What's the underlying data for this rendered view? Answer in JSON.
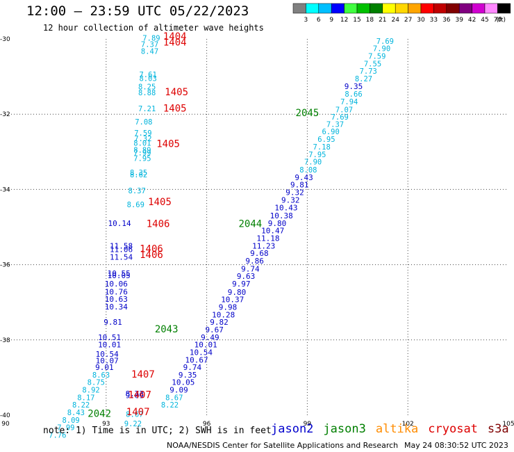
{
  "header": {
    "title": "12:00 — 23:59 UTC 05/22/2023",
    "subtitle": "12 hour collection of altimeter wave heights"
  },
  "footer": {
    "note": "note: 1) Time is in UTC; 2) SWH is in feet",
    "credit": "NOAA/NESDIS Center for Satellite Applications and Research",
    "generated": "May 24 08:30:52 UTC 2023"
  },
  "satellites": [
    {
      "name": "jason2",
      "color": "#0000cc"
    },
    {
      "name": "jason3",
      "color": "#007f00"
    },
    {
      "name": "altika",
      "color": "#ff8c00"
    },
    {
      "name": "cryosat",
      "color": "#dd0000"
    },
    {
      "name": "s3a",
      "color": "#7f0000"
    }
  ],
  "colorbar": {
    "unit": "(ft)",
    "bins": [
      {
        "label": "3",
        "color": "#808080"
      },
      {
        "label": "6",
        "color": "#00ffff"
      },
      {
        "label": "9",
        "color": "#00bfff"
      },
      {
        "label": "12",
        "color": "#0000ff"
      },
      {
        "label": "15",
        "color": "#40ff40"
      },
      {
        "label": "18",
        "color": "#00c000"
      },
      {
        "label": "21",
        "color": "#008000"
      },
      {
        "label": "24",
        "color": "#ffff00"
      },
      {
        "label": "27",
        "color": "#ffd700"
      },
      {
        "label": "30",
        "color": "#ffa500"
      },
      {
        "label": "33",
        "color": "#ff0000"
      },
      {
        "label": "36",
        "color": "#c00000"
      },
      {
        "label": "39",
        "color": "#800000"
      },
      {
        "label": "42",
        "color": "#800080"
      },
      {
        "label": "45",
        "color": "#d000d0"
      },
      {
        "label": "70",
        "color": "#ff88ff"
      },
      {
        "label": "",
        "color": "#000000"
      }
    ]
  },
  "chart_data": {
    "type": "scatter",
    "title": "12:00 — 23:59 UTC 05/22/2023",
    "xlim": [
      90,
      105
    ],
    "ylim": [
      -40,
      -30
    ],
    "x_ticks": [
      90,
      93,
      96,
      99,
      102,
      105
    ],
    "y_ticks": [
      -30,
      -32,
      -34,
      -36,
      -38,
      -40
    ],
    "grid": true,
    "value_colors": {
      "cyan": "#00b4dc",
      "blue": "#0000c8",
      "time": "#dd0000",
      "track": "#007f00"
    },
    "points": [
      {
        "x": 94.35,
        "y": -30.05,
        "v": "7.89",
        "c": "cyan"
      },
      {
        "x": 94.3,
        "y": -30.21,
        "v": "7.37",
        "c": "cyan"
      },
      {
        "x": 94.3,
        "y": -30.4,
        "v": "8.47",
        "c": "cyan"
      },
      {
        "x": 94.25,
        "y": -31.02,
        "v": "7.61",
        "c": "cyan"
      },
      {
        "x": 94.25,
        "y": -31.12,
        "v": "8.03",
        "c": "cyan"
      },
      {
        "x": 94.22,
        "y": -31.34,
        "v": "8.25",
        "c": "cyan"
      },
      {
        "x": 94.22,
        "y": -31.5,
        "v": "8.88",
        "c": "cyan"
      },
      {
        "x": 94.22,
        "y": -31.92,
        "v": "7.21",
        "c": "cyan"
      },
      {
        "x": 94.12,
        "y": -32.27,
        "v": "7.08",
        "c": "cyan"
      },
      {
        "x": 94.1,
        "y": -32.57,
        "v": "7.59",
        "c": "cyan"
      },
      {
        "x": 94.1,
        "y": -32.72,
        "v": "7.32",
        "c": "cyan"
      },
      {
        "x": 94.08,
        "y": -32.84,
        "v": "8.01",
        "c": "cyan"
      },
      {
        "x": 94.08,
        "y": -33.02,
        "v": "8.89",
        "c": "cyan"
      },
      {
        "x": 94.08,
        "y": -33.1,
        "v": "7.99",
        "c": "cyan"
      },
      {
        "x": 94.08,
        "y": -33.24,
        "v": "7.95",
        "c": "cyan"
      },
      {
        "x": 93.97,
        "y": -33.62,
        "v": "8.35",
        "c": "cyan"
      },
      {
        "x": 93.97,
        "y": -33.68,
        "v": "8.62",
        "c": "cyan"
      },
      {
        "x": 93.92,
        "y": -34.1,
        "v": "8.37",
        "c": "cyan"
      },
      {
        "x": 93.88,
        "y": -34.47,
        "v": "8.69",
        "c": "cyan"
      },
      {
        "x": 101.32,
        "y": -30.13,
        "v": "7.69",
        "c": "cyan"
      },
      {
        "x": 101.22,
        "y": -30.32,
        "v": "7.90",
        "c": "cyan"
      },
      {
        "x": 101.08,
        "y": -30.53,
        "v": "7.59",
        "c": "cyan"
      },
      {
        "x": 100.95,
        "y": -30.73,
        "v": "7.55",
        "c": "cyan"
      },
      {
        "x": 100.82,
        "y": -30.92,
        "v": "7.73",
        "c": "cyan"
      },
      {
        "x": 100.68,
        "y": -31.13,
        "v": "8.27",
        "c": "cyan"
      },
      {
        "x": 100.38,
        "y": -31.33,
        "v": "9.35",
        "c": "blue"
      },
      {
        "x": 100.38,
        "y": -31.53,
        "v": "8.66",
        "c": "cyan"
      },
      {
        "x": 100.25,
        "y": -31.74,
        "v": "7.94",
        "c": "cyan"
      },
      {
        "x": 100.1,
        "y": -31.95,
        "v": "7.07",
        "c": "cyan"
      },
      {
        "x": 99.97,
        "y": -32.14,
        "v": "7.69",
        "c": "cyan"
      },
      {
        "x": 99.83,
        "y": -32.34,
        "v": "7.37",
        "c": "cyan"
      },
      {
        "x": 99.7,
        "y": -32.53,
        "v": "6.90",
        "c": "cyan"
      },
      {
        "x": 99.57,
        "y": -32.74,
        "v": "6.95",
        "c": "cyan"
      },
      {
        "x": 99.43,
        "y": -32.94,
        "v": "7.18",
        "c": "cyan"
      },
      {
        "x": 99.3,
        "y": -33.14,
        "v": "7.95",
        "c": "cyan"
      },
      {
        "x": 99.17,
        "y": -33.34,
        "v": "7.90",
        "c": "cyan"
      },
      {
        "x": 99.03,
        "y": -33.55,
        "v": "8.08",
        "c": "cyan"
      },
      {
        "x": 98.9,
        "y": -33.75,
        "v": "9.43",
        "c": "blue"
      },
      {
        "x": 98.77,
        "y": -33.95,
        "v": "9.81",
        "c": "blue"
      },
      {
        "x": 98.63,
        "y": -34.15,
        "v": "9.32",
        "c": "blue"
      },
      {
        "x": 98.5,
        "y": -34.35,
        "v": "9.32",
        "c": "blue"
      },
      {
        "x": 98.37,
        "y": -34.56,
        "v": "10.43",
        "c": "blue"
      },
      {
        "x": 98.23,
        "y": -34.77,
        "v": "10.38",
        "c": "blue"
      },
      {
        "x": 98.1,
        "y": -34.97,
        "v": "9.80",
        "c": "blue"
      },
      {
        "x": 97.97,
        "y": -35.17,
        "v": "10.47",
        "c": "blue"
      },
      {
        "x": 97.83,
        "y": -35.37,
        "v": "11.18",
        "c": "blue"
      },
      {
        "x": 97.7,
        "y": -35.57,
        "v": "11.23",
        "c": "blue"
      },
      {
        "x": 97.57,
        "y": -35.77,
        "v": "9.68",
        "c": "blue"
      },
      {
        "x": 97.43,
        "y": -35.97,
        "v": "9.86",
        "c": "blue"
      },
      {
        "x": 97.3,
        "y": -36.18,
        "v": "9.74",
        "c": "blue"
      },
      {
        "x": 97.17,
        "y": -36.38,
        "v": "9.63",
        "c": "blue"
      },
      {
        "x": 97.03,
        "y": -36.58,
        "v": "9.97",
        "c": "blue"
      },
      {
        "x": 96.9,
        "y": -36.8,
        "v": "9.80",
        "c": "blue"
      },
      {
        "x": 96.77,
        "y": -37.0,
        "v": "10.37",
        "c": "blue"
      },
      {
        "x": 96.63,
        "y": -37.2,
        "v": "9.98",
        "c": "blue"
      },
      {
        "x": 96.5,
        "y": -37.4,
        "v": "10.28",
        "c": "blue"
      },
      {
        "x": 96.37,
        "y": -37.6,
        "v": "9.82",
        "c": "blue"
      },
      {
        "x": 96.23,
        "y": -37.8,
        "v": "9.67",
        "c": "blue"
      },
      {
        "x": 96.1,
        "y": -38.0,
        "v": "9.49",
        "c": "blue"
      },
      {
        "x": 95.97,
        "y": -38.2,
        "v": "10.01",
        "c": "blue"
      },
      {
        "x": 95.83,
        "y": -38.4,
        "v": "10.54",
        "c": "blue"
      },
      {
        "x": 95.7,
        "y": -38.6,
        "v": "10.67",
        "c": "blue"
      },
      {
        "x": 95.57,
        "y": -38.8,
        "v": "9.74",
        "c": "blue"
      },
      {
        "x": 95.43,
        "y": -39.0,
        "v": "9.35",
        "c": "blue"
      },
      {
        "x": 95.3,
        "y": -39.2,
        "v": "10.05",
        "c": "blue"
      },
      {
        "x": 95.17,
        "y": -39.4,
        "v": "9.09",
        "c": "blue"
      },
      {
        "x": 95.03,
        "y": -39.6,
        "v": "8.67",
        "c": "cyan"
      },
      {
        "x": 94.9,
        "y": -39.8,
        "v": "8.22",
        "c": "cyan"
      },
      {
        "x": 93.45,
        "y": -35.57,
        "v": "11.58",
        "c": "blue"
      },
      {
        "x": 93.45,
        "y": -35.67,
        "v": "11.06",
        "c": "blue"
      },
      {
        "x": 93.45,
        "y": -35.87,
        "v": "11.54",
        "c": "blue"
      },
      {
        "x": 93.4,
        "y": -34.97,
        "v": "10.14",
        "c": "blue"
      },
      {
        "x": 93.38,
        "y": -36.3,
        "v": "10.55",
        "c": "blue"
      },
      {
        "x": 93.38,
        "y": -36.36,
        "v": "10.05",
        "c": "blue"
      },
      {
        "x": 93.3,
        "y": -36.58,
        "v": "10.06",
        "c": "blue"
      },
      {
        "x": 93.3,
        "y": -36.79,
        "v": "10.76",
        "c": "blue"
      },
      {
        "x": 93.3,
        "y": -36.99,
        "v": "10.63",
        "c": "blue"
      },
      {
        "x": 93.3,
        "y": -37.19,
        "v": "10.34",
        "c": "blue"
      },
      {
        "x": 93.2,
        "y": -37.6,
        "v": "9.81",
        "c": "blue"
      },
      {
        "x": 93.1,
        "y": -38.0,
        "v": "10.51",
        "c": "blue"
      },
      {
        "x": 93.1,
        "y": -38.2,
        "v": "10.01",
        "c": "blue"
      },
      {
        "x": 93.03,
        "y": -38.45,
        "v": "10.54",
        "c": "blue"
      },
      {
        "x": 93.03,
        "y": -38.62,
        "v": "10.07",
        "c": "blue"
      },
      {
        "x": 92.95,
        "y": -38.8,
        "v": "9.01",
        "c": "blue"
      },
      {
        "x": 92.85,
        "y": -39.0,
        "v": "8.63",
        "c": "cyan"
      },
      {
        "x": 92.7,
        "y": -39.2,
        "v": "8.75",
        "c": "cyan"
      },
      {
        "x": 92.55,
        "y": -39.4,
        "v": "8.92",
        "c": "cyan"
      },
      {
        "x": 92.4,
        "y": -39.6,
        "v": "8.17",
        "c": "cyan"
      },
      {
        "x": 92.25,
        "y": -39.8,
        "v": "8.22",
        "c": "cyan"
      },
      {
        "x": 92.1,
        "y": -40.0,
        "v": "8.43",
        "c": "cyan"
      },
      {
        "x": 91.95,
        "y": -40.2,
        "v": "8.09",
        "c": "cyan"
      },
      {
        "x": 91.8,
        "y": -40.4,
        "v": "7.99",
        "c": "cyan"
      },
      {
        "x": 91.55,
        "y": -40.6,
        "v": "7.76",
        "c": "cyan"
      },
      {
        "x": 93.85,
        "y": -39.5,
        "v": "8.73",
        "c": "blue"
      },
      {
        "x": 93.85,
        "y": -39.55,
        "v": "9.09",
        "c": "blue"
      },
      {
        "x": 93.85,
        "y": -40.05,
        "v": "8.67",
        "c": "cyan"
      },
      {
        "x": 93.8,
        "y": -40.3,
        "v": "9.22",
        "c": "cyan"
      }
    ],
    "time_labels": [
      {
        "x": 95.05,
        "y": -30.02,
        "v": "1404"
      },
      {
        "x": 95.05,
        "y": -30.18,
        "v": "1404"
      },
      {
        "x": 95.1,
        "y": -31.5,
        "v": "1405"
      },
      {
        "x": 95.05,
        "y": -31.93,
        "v": "1405"
      },
      {
        "x": 94.85,
        "y": -32.87,
        "v": "1405"
      },
      {
        "x": 94.6,
        "y": -34.42,
        "v": "1405"
      },
      {
        "x": 94.55,
        "y": -35.0,
        "v": "1406"
      },
      {
        "x": 94.35,
        "y": -35.67,
        "v": "1406"
      },
      {
        "x": 94.35,
        "y": -35.82,
        "v": "1406"
      },
      {
        "x": 94.1,
        "y": -39.0,
        "v": "1407"
      },
      {
        "x": 94.0,
        "y": -39.55,
        "v": "1407"
      },
      {
        "x": 93.95,
        "y": -40.0,
        "v": "1407"
      }
    ],
    "track_labels": [
      {
        "x": 99.0,
        "y": -32.05,
        "v": "2045"
      },
      {
        "x": 97.3,
        "y": -35.0,
        "v": "2044"
      },
      {
        "x": 94.8,
        "y": -37.8,
        "v": "2043"
      },
      {
        "x": 92.8,
        "y": -40.05,
        "v": "2042"
      }
    ]
  }
}
